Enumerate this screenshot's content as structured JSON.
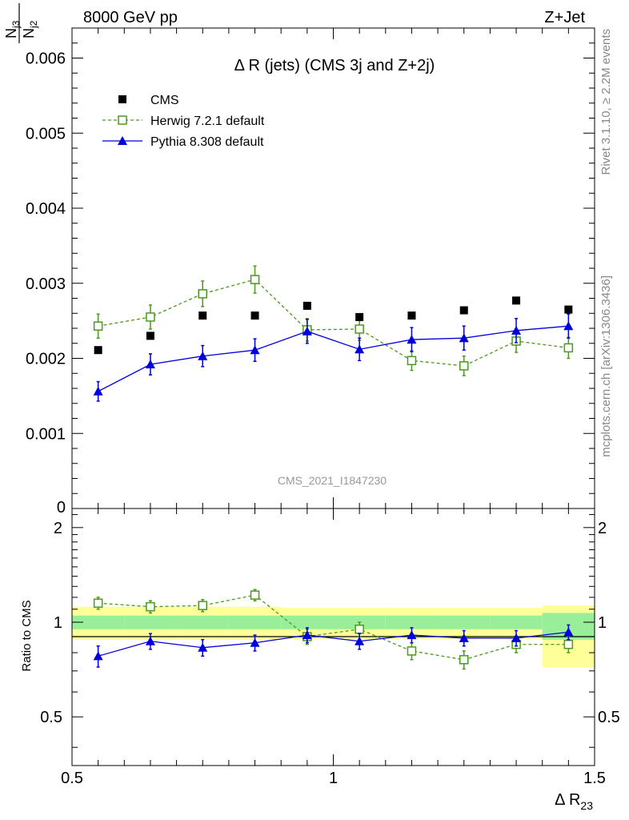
{
  "header": {
    "energy_label": "8000 GeV pp",
    "process_label": "Z+Jet",
    "rivet_label": "Rivet 3.1.10, ≥ 2.2M events",
    "mcplots_label": "mcplots.cern.ch [arXiv:1306.3436]",
    "analysis_label": "CMS_2021_I1847230"
  },
  "chart_data": [
    {
      "type": "scatter",
      "title": "Δ R (jets) (CMS 3j and Z+2j)",
      "ylabel": {
        "num_main": "N",
        "num_sub": "j3",
        "den_main": "N",
        "den_sub": "j2"
      },
      "xlim": [
        0.5,
        1.5
      ],
      "ylim": [
        0,
        0.0064
      ],
      "yticks": [
        0.001,
        0.002,
        0.003,
        0.004,
        0.005,
        0.006
      ],
      "ytick_labels": [
        "0.001",
        "0.002",
        "0.003",
        "0.004",
        "0.005",
        "0.006"
      ],
      "ytick_zero_label": "0",
      "legend_position": "top-left",
      "x": [
        0.55,
        0.65,
        0.75,
        0.85,
        0.95,
        1.05,
        1.15,
        1.25,
        1.35,
        1.45
      ],
      "series": [
        {
          "name": "CMS",
          "marker": "square-filled",
          "color": "#000000",
          "values": [
            0.00211,
            0.0023,
            0.00257,
            0.00257,
            0.0027,
            0.00255,
            0.00257,
            0.00264,
            0.00277,
            0.00265
          ],
          "errors": [
            3e-05,
            3e-05,
            3e-05,
            3e-05,
            3e-05,
            3e-05,
            3e-05,
            3e-05,
            3e-05,
            3e-05
          ]
        },
        {
          "name": "Herwig 7.2.1 default",
          "marker": "square-open",
          "line": "dashed",
          "color": "#4a9a1c",
          "values": [
            0.00243,
            0.00255,
            0.00286,
            0.00305,
            0.00238,
            0.00239,
            0.00197,
            0.0019,
            0.00223,
            0.00214
          ],
          "errors": [
            0.00016,
            0.00016,
            0.00017,
            0.00018,
            0.00015,
            0.00015,
            0.00013,
            0.00013,
            0.00015,
            0.00014
          ]
        },
        {
          "name": "Pythia 8.308 default",
          "marker": "triangle-filled",
          "line": "solid",
          "color": "#0000dd",
          "values": [
            0.00156,
            0.00192,
            0.00203,
            0.00211,
            0.00236,
            0.00212,
            0.00225,
            0.00227,
            0.00237,
            0.00243
          ],
          "errors": [
            0.00013,
            0.00014,
            0.00014,
            0.00015,
            0.00016,
            0.00015,
            0.00016,
            0.00016,
            0.00016,
            0.00016
          ]
        }
      ]
    },
    {
      "type": "scatter",
      "xlabel": {
        "main": "Δ R",
        "sub": "23"
      },
      "ylabel": "Ratio to CMS",
      "xlim": [
        0.5,
        1.5
      ],
      "ylim": [
        0.35,
        2.3
      ],
      "xticks": [
        0.5,
        1,
        1.5
      ],
      "xtick_labels": [
        "0.5",
        "1",
        "1.5"
      ],
      "yticks": [
        0.5,
        1,
        2
      ],
      "ytick_labels": [
        "0.5",
        "1",
        "2"
      ],
      "x": [
        0.55,
        0.65,
        0.75,
        0.85,
        0.95,
        1.05,
        1.15,
        1.25,
        1.35,
        1.45
      ],
      "bands": {
        "outer_color": "#ffff99",
        "inner_color": "#99ee99",
        "bins": [
          {
            "x0": 0.5,
            "x1": 0.6,
            "outer": [
              0.88,
              1.12
            ],
            "inner": [
              0.95,
              1.05
            ]
          },
          {
            "x0": 0.6,
            "x1": 0.7,
            "outer": [
              0.88,
              1.12
            ],
            "inner": [
              0.95,
              1.05
            ]
          },
          {
            "x0": 0.7,
            "x1": 0.8,
            "outer": [
              0.88,
              1.12
            ],
            "inner": [
              0.95,
              1.05
            ]
          },
          {
            "x0": 0.8,
            "x1": 0.9,
            "outer": [
              0.88,
              1.12
            ],
            "inner": [
              0.95,
              1.05
            ]
          },
          {
            "x0": 0.9,
            "x1": 1.0,
            "outer": [
              0.885,
              1.11
            ],
            "inner": [
              0.95,
              1.05
            ]
          },
          {
            "x0": 1.0,
            "x1": 1.1,
            "outer": [
              0.885,
              1.11
            ],
            "inner": [
              0.95,
              1.05
            ]
          },
          {
            "x0": 1.1,
            "x1": 1.2,
            "outer": [
              0.885,
              1.11
            ],
            "inner": [
              0.95,
              1.05
            ]
          },
          {
            "x0": 1.2,
            "x1": 1.3,
            "outer": [
              0.885,
              1.11
            ],
            "inner": [
              0.95,
              1.05
            ]
          },
          {
            "x0": 1.3,
            "x1": 1.4,
            "outer": [
              0.885,
              1.11
            ],
            "inner": [
              0.95,
              1.05
            ]
          },
          {
            "x0": 1.4,
            "x1": 1.5,
            "outer": [
              0.72,
              1.13
            ],
            "inner": [
              0.88,
              1.07
            ]
          }
        ]
      },
      "series": [
        {
          "name": "Herwig 7.2.1 default",
          "marker": "square-open",
          "line": "dashed",
          "color": "#4a9a1c",
          "values": [
            1.15,
            1.12,
            1.13,
            1.22,
            0.9,
            0.95,
            0.81,
            0.76,
            0.85,
            0.85
          ],
          "errors": [
            0.05,
            0.05,
            0.05,
            0.05,
            0.05,
            0.05,
            0.05,
            0.05,
            0.05,
            0.05
          ]
        },
        {
          "name": "Pythia 8.308 default",
          "marker": "triangle-filled",
          "line": "solid",
          "color": "#0000dd",
          "values": [
            0.78,
            0.87,
            0.83,
            0.86,
            0.91,
            0.87,
            0.91,
            0.89,
            0.89,
            0.93
          ],
          "errors": [
            0.06,
            0.05,
            0.05,
            0.05,
            0.05,
            0.05,
            0.05,
            0.05,
            0.05,
            0.05
          ]
        }
      ]
    }
  ]
}
